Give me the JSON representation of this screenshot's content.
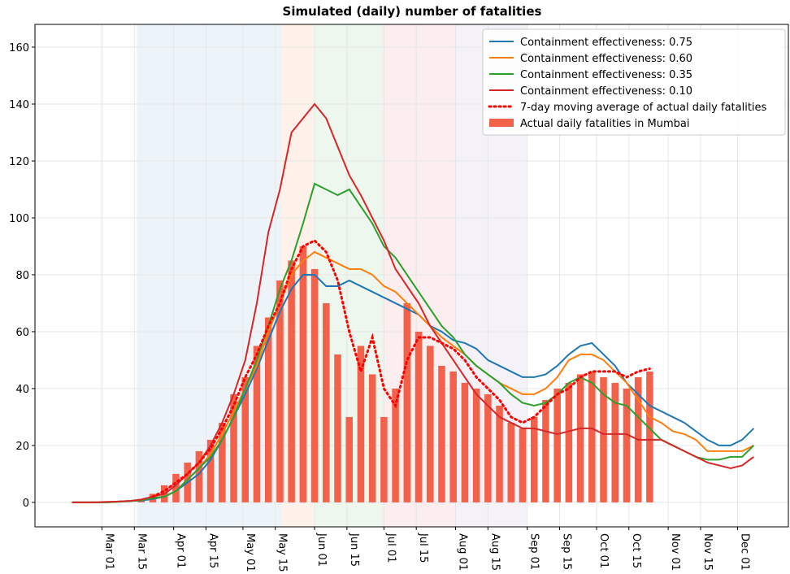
{
  "chart_data": {
    "type": "line",
    "title": "Simulated (daily) number of fatalities",
    "x": [
      -13,
      -8,
      -3,
      2,
      7,
      12,
      17,
      22,
      27,
      32,
      37,
      42,
      47,
      52,
      57,
      62,
      67,
      72,
      77,
      82,
      87,
      92,
      97,
      102,
      107,
      112,
      117,
      122,
      127,
      132,
      137,
      142,
      147,
      152,
      157,
      162,
      167,
      172,
      177,
      182,
      187,
      192,
      197,
      202,
      207,
      212,
      217,
      222,
      227,
      232,
      237,
      242,
      247,
      252,
      257,
      262,
      267,
      272,
      277,
      282
    ],
    "xlim": [
      -29,
      297
    ],
    "xticks": [
      {
        "value": 0,
        "label": "Mar 01"
      },
      {
        "value": 14,
        "label": "Mar 15"
      },
      {
        "value": 31,
        "label": "Apr 01"
      },
      {
        "value": 45,
        "label": "Apr 15"
      },
      {
        "value": 61,
        "label": "May 01"
      },
      {
        "value": 75,
        "label": "May 15"
      },
      {
        "value": 92,
        "label": "Jun 01"
      },
      {
        "value": 106,
        "label": "Jun 15"
      },
      {
        "value": 122,
        "label": "Jul 01"
      },
      {
        "value": 136,
        "label": "Jul 15"
      },
      {
        "value": 153,
        "label": "Aug 01"
      },
      {
        "value": 167,
        "label": "Aug 15"
      },
      {
        "value": 184,
        "label": "Sep 01"
      },
      {
        "value": 198,
        "label": "Sep 15"
      },
      {
        "value": 214,
        "label": "Oct 01"
      },
      {
        "value": 228,
        "label": "Oct 15"
      },
      {
        "value": 245,
        "label": "Nov 01"
      },
      {
        "value": 259,
        "label": "Nov 15"
      },
      {
        "value": 275,
        "label": "Dec 01"
      }
    ],
    "ylim": [
      -8.6,
      168
    ],
    "yticks": [
      0,
      20,
      40,
      60,
      80,
      100,
      120,
      140,
      160
    ],
    "grid": true,
    "legend": "upper right",
    "shaded_periods": [
      {
        "start": 15,
        "end": 77.6,
        "color": "#e8f1f8"
      },
      {
        "start": 77.6,
        "end": 91.7,
        "color": "#fdeee3"
      },
      {
        "start": 91.7,
        "end": 121.5,
        "color": "#e9f5e9"
      },
      {
        "start": 121.5,
        "end": 152.4,
        "color": "#fbe9ea"
      },
      {
        "start": 152.4,
        "end": 183.7,
        "color": "#f1eef7"
      }
    ],
    "series": [
      {
        "name": "Containment effectiveness: 0.75",
        "color": "#1f77b4",
        "style": "solid",
        "values": [
          0,
          0,
          0,
          0,
          0.3,
          0.5,
          0.6,
          1.2,
          2,
          4,
          7,
          10,
          15,
          22,
          30,
          38,
          47,
          57,
          67,
          75,
          80,
          80,
          76,
          76,
          78,
          76,
          74,
          72,
          70,
          68,
          66,
          62,
          60,
          57,
          56,
          54,
          50,
          48,
          46,
          44,
          44,
          45,
          48,
          52,
          55,
          56,
          52,
          48,
          42,
          38,
          34,
          32,
          30,
          28,
          25,
          22,
          20,
          20,
          22,
          26
        ]
      },
      {
        "name": "Containment effectiveness: 0.60",
        "color": "#ff7f0e",
        "style": "solid",
        "values": [
          0,
          0,
          0,
          0,
          0.3,
          0.5,
          0.8,
          1.5,
          2,
          4,
          8,
          12,
          17,
          24,
          32,
          40,
          48,
          60,
          70,
          80,
          85,
          88,
          86,
          84,
          82,
          82,
          80,
          76,
          74,
          70,
          66,
          62,
          58,
          55,
          52,
          48,
          45,
          42,
          40,
          38,
          38,
          40,
          44,
          50,
          52,
          52,
          50,
          46,
          42,
          36,
          30,
          28,
          25,
          24,
          22,
          18,
          18,
          18,
          18,
          20
        ]
      },
      {
        "name": "Containment effectiveness: 0.35",
        "color": "#2ca02c",
        "style": "solid",
        "values": [
          0,
          0,
          0,
          0,
          0.2,
          0.4,
          0.8,
          1.5,
          2,
          4,
          8,
          12,
          16,
          22,
          30,
          40,
          50,
          62,
          75,
          85,
          98,
          112,
          110,
          108,
          110,
          104,
          98,
          90,
          86,
          80,
          74,
          68,
          62,
          58,
          52,
          48,
          45,
          42,
          38,
          35,
          34,
          35,
          38,
          42,
          44,
          42,
          38,
          35,
          34,
          30,
          26,
          22,
          20,
          18,
          16,
          15,
          15,
          16,
          16,
          20
        ]
      },
      {
        "name": "Containment effectiveness: 0.10",
        "color": "#d62728",
        "style": "solid",
        "values": [
          0,
          0,
          0,
          0.2,
          0.3,
          0.5,
          1,
          2,
          3,
          6,
          10,
          14,
          20,
          28,
          38,
          50,
          70,
          95,
          110,
          130,
          135,
          140,
          135,
          125,
          115,
          108,
          100,
          92,
          82,
          76,
          70,
          62,
          56,
          50,
          44,
          38,
          34,
          30,
          28,
          26,
          26,
          25,
          24,
          25,
          26,
          26,
          24,
          24,
          24,
          22,
          22,
          22,
          20,
          18,
          16,
          14,
          13,
          12,
          13,
          16
        ]
      },
      {
        "name": "7-day moving average of actual daily fatalities",
        "color": "#ff0000",
        "style": "dotted",
        "values": [
          null,
          null,
          null,
          null,
          null,
          null,
          null,
          2,
          4,
          7,
          10,
          14,
          19,
          26,
          34,
          44,
          52,
          62,
          70,
          82,
          90,
          92,
          88,
          78,
          60,
          46,
          58,
          40,
          34,
          50,
          58,
          58,
          56,
          54,
          50,
          44,
          40,
          36,
          30,
          28,
          30,
          34,
          38,
          40,
          44,
          46,
          46,
          46,
          44,
          46,
          47,
          null,
          null,
          null,
          null,
          null,
          null,
          null,
          null,
          null
        ]
      },
      {
        "name": "Actual daily fatalities in Mumbai",
        "color": "#f4614b",
        "style": "bar",
        "values": [
          null,
          null,
          null,
          null,
          null,
          null,
          1,
          3,
          6,
          10,
          14,
          18,
          22,
          28,
          38,
          44,
          55,
          65,
          78,
          85,
          90,
          82,
          70,
          52,
          30,
          55,
          45,
          30,
          40,
          70,
          60,
          55,
          48,
          46,
          42,
          40,
          38,
          34,
          28,
          26,
          30,
          36,
          40,
          42,
          45,
          46,
          44,
          42,
          40,
          44,
          46,
          null,
          null,
          null,
          null,
          null,
          null,
          null,
          null,
          null
        ]
      }
    ]
  }
}
